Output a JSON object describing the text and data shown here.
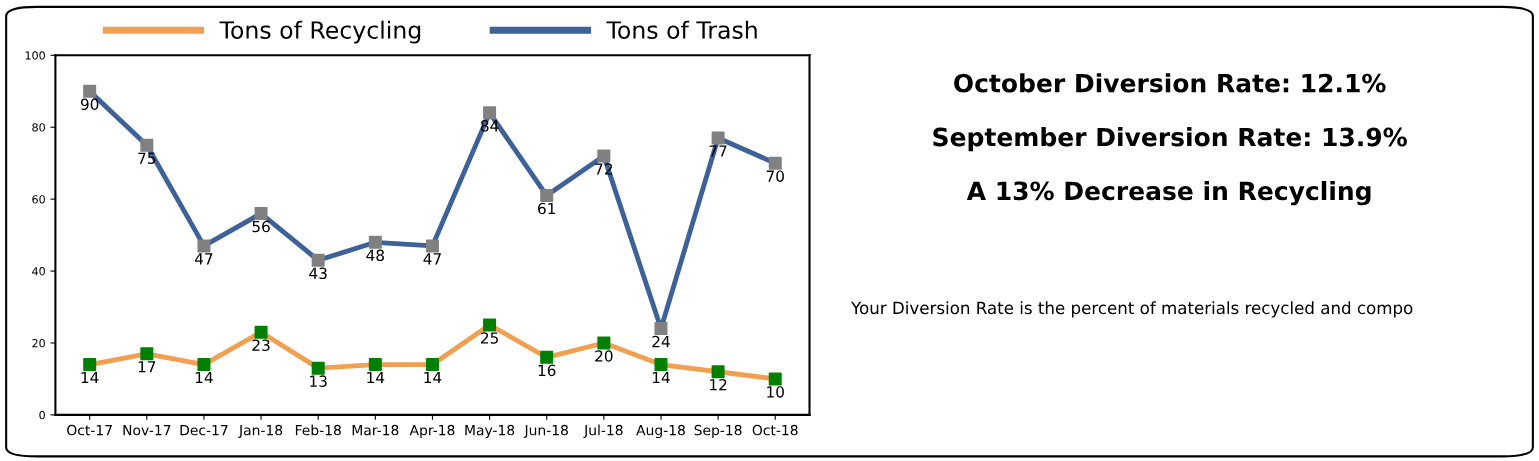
{
  "chart_data": [
    {
      "type": "line",
      "categories": [
        "Oct-17",
        "Nov-17",
        "Dec-17",
        "Jan-18",
        "Feb-18",
        "Mar-18",
        "Apr-18",
        "May-18",
        "Jun-18",
        "Jul-18",
        "Aug-18",
        "Sep-18",
        "Oct-18"
      ],
      "series": [
        {
          "name": "Tons of Recycling",
          "color": "#f0a050",
          "colors": [
            "#008000",
            "#008000",
            "#008000",
            "#008000",
            "#008000",
            "#008000",
            "#008000",
            "#008000",
            "#008000",
            "#008000",
            "#008000",
            "#008000",
            "#008000"
          ],
          "values": [
            14,
            17,
            14,
            23,
            13,
            14,
            14,
            25,
            16,
            20,
            14,
            12,
            10
          ]
        },
        {
          "name": "Tons of Trash",
          "color": "#3d6199",
          "colors": [
            "#808080",
            "#808080",
            "#808080",
            "#808080",
            "#808080",
            "#808080",
            "#808080",
            "#808080",
            "#808080",
            "#808080",
            "#808080",
            "#808080",
            "#808080"
          ],
          "values": [
            90,
            75,
            47,
            56,
            43,
            48,
            47,
            84,
            61,
            72,
            24,
            77,
            70
          ]
        }
      ],
      "ylim": [
        0,
        100
      ],
      "yticks": [
        0,
        20,
        40,
        60,
        80,
        100
      ],
      "grid": false,
      "legend": "top",
      "marker": "square",
      "line_style": "solid",
      "data_labels": true
    },
    {
      "type": "other",
      "annotations": [
        "October Diversion Rate: 12.1%",
        "September Diversion Rate: 13.9%",
        "A 13% Decrease in Recycling",
        "Your Diversion Rate is the percent of materials recycled and compo"
      ]
    }
  ]
}
